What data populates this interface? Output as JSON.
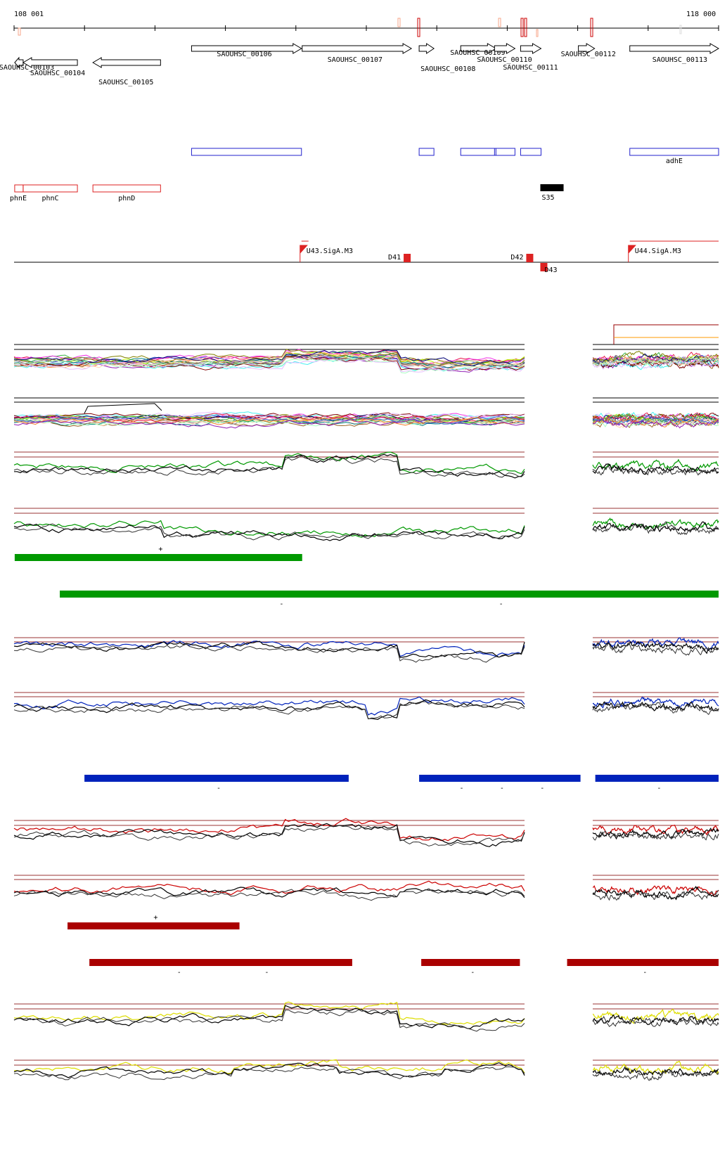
{
  "ruler": {
    "start_label": "108 001",
    "end_label": "118 000",
    "start": 108001,
    "end": 118000
  },
  "genes": [
    {
      "label": "SAOUHSC_00103",
      "start": 108010,
      "end": 108130,
      "strand": "-"
    },
    {
      "label": "SAOUHSC_00104",
      "start": 108130,
      "end": 108900,
      "strand": "-"
    },
    {
      "label": "SAOUHSC_00105",
      "start": 109120,
      "end": 110080,
      "strand": "-"
    },
    {
      "label": "SAOUHSC_00106",
      "start": 110520,
      "end": 112080,
      "strand": "+"
    },
    {
      "label": "SAOUHSC_00107",
      "start": 112090,
      "end": 113640,
      "strand": "+"
    },
    {
      "label": "SAOUHSC_00108",
      "start": 113750,
      "end": 113960,
      "strand": "+"
    },
    {
      "label": "SAOUHSC_00109",
      "start": 114340,
      "end": 114840,
      "strand": "+"
    },
    {
      "label": "SAOUHSC_00110",
      "start": 114820,
      "end": 115110,
      "strand": "+"
    },
    {
      "label": "SAOUHSC_00111",
      "start": 115190,
      "end": 115480,
      "strand": "+"
    },
    {
      "label": "SAOUHSC_00112",
      "start": 116010,
      "end": 116240,
      "strand": "+"
    },
    {
      "label": "SAOUHSC_00113",
      "start": 116740,
      "end": 118000,
      "strand": "+"
    }
  ],
  "blue_annotations": [
    {
      "label": "",
      "start": 110520,
      "end": 112080
    },
    {
      "label": "",
      "start": 113750,
      "end": 113960
    },
    {
      "label": "",
      "start": 114340,
      "end": 114840
    },
    {
      "label": "",
      "start": 114820,
      "end": 115110
    },
    {
      "label": "",
      "start": 115190,
      "end": 115480
    },
    {
      "label": "adhE",
      "start": 116740,
      "end": 118000
    }
  ],
  "red_annotations": [
    {
      "label": "phnE",
      "start": 108010,
      "end": 108130
    },
    {
      "label": "phnC",
      "start": 108130,
      "end": 108900
    },
    {
      "label": "phnD",
      "start": 109120,
      "end": 110080
    }
  ],
  "s35_block": {
    "label": "S35",
    "start": 115470,
    "end": 115800
  },
  "operon_features": [
    {
      "label": "U43.SigA.M3",
      "type": "flag-up",
      "pos": 112060
    },
    {
      "label": "D41",
      "type": "box-up",
      "pos": 113530
    },
    {
      "label": "D42",
      "type": "box-up",
      "pos": 115270
    },
    {
      "label": "D43",
      "type": "box-down",
      "pos": 115470
    },
    {
      "label": "U44.SigA.M3",
      "type": "flag-up",
      "pos": 116720
    }
  ],
  "segments": {
    "green_plus": [
      {
        "start": 108010,
        "end": 112090,
        "mark": "+"
      }
    ],
    "green_minus": [
      {
        "start": 108650,
        "end": 118000,
        "marks": [
          "-",
          "-"
        ]
      }
    ],
    "blue_minus": [
      {
        "start": 109000,
        "end": 112750,
        "marks": [
          "-"
        ]
      },
      {
        "start": 113750,
        "end": 116040,
        "marks": [
          "-",
          "-",
          "-"
        ]
      },
      {
        "start": 116250,
        "end": 118000,
        "marks": [
          "-"
        ]
      }
    ],
    "red_plus": [
      {
        "start": 108760,
        "end": 111200,
        "mark": "+"
      }
    ],
    "red_minus": [
      {
        "start": 109070,
        "end": 112800,
        "marks": [
          "-",
          "-"
        ]
      },
      {
        "start": 113780,
        "end": 115180,
        "marks": [
          "-"
        ]
      },
      {
        "start": 115850,
        "end": 118000,
        "marks": [
          "-"
        ]
      }
    ]
  },
  "colors": {
    "gene_outline": "#000000",
    "blue_annotation": "#2222cc",
    "red_annotation": "#dd2222",
    "green_segment": "#009900",
    "blue_segment": "#0022bb",
    "red_segment": "#aa0000",
    "yellow_trace": "#dddd00",
    "threshold_line": "#993333"
  }
}
